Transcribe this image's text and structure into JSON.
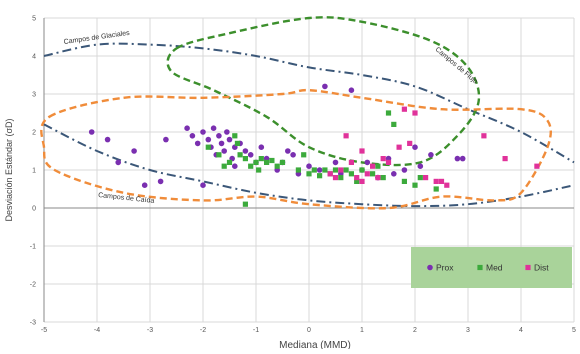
{
  "chart_data": {
    "type": "scatter",
    "title": "",
    "xlabel": "Mediana (MMD)",
    "ylabel": "Desviación Estándar (σD)",
    "xlim": [
      -5,
      5
    ],
    "ylim": [
      -3,
      5
    ],
    "x_ticks": [
      -5,
      -4,
      -3,
      -2,
      -1,
      0,
      1,
      2,
      3,
      4,
      5
    ],
    "y_ticks": [
      -3,
      -2,
      -1,
      0,
      1,
      2,
      3,
      4,
      5
    ],
    "x_tick_labels": [
      "-5",
      "-4",
      "-3",
      "-2",
      "-1",
      "0",
      "1",
      "2",
      "3",
      "4",
      "5"
    ],
    "y_tick_labels": [
      "-3",
      "-2",
      "-1",
      "0",
      "1",
      "2",
      "3",
      "4",
      "5"
    ],
    "grid": true,
    "legend_position": "bottom-right",
    "legend_background": "#a9d39a",
    "series": [
      {
        "name": "Prox",
        "color": "#7a2fb0",
        "marker": "circle",
        "points": [
          [
            -4.1,
            2.0
          ],
          [
            -3.8,
            1.8
          ],
          [
            -3.6,
            1.2
          ],
          [
            -3.3,
            1.5
          ],
          [
            -3.1,
            0.6
          ],
          [
            -2.7,
            1.8
          ],
          [
            -2.3,
            2.1
          ],
          [
            -2.2,
            1.9
          ],
          [
            -2.1,
            1.7
          ],
          [
            -2.0,
            2.0
          ],
          [
            -1.9,
            1.8
          ],
          [
            -1.85,
            1.6
          ],
          [
            -1.8,
            2.1
          ],
          [
            -1.75,
            1.4
          ],
          [
            -1.7,
            1.9
          ],
          [
            -1.65,
            1.7
          ],
          [
            -1.6,
            1.5
          ],
          [
            -1.55,
            2.0
          ],
          [
            -1.5,
            1.8
          ],
          [
            -1.45,
            1.3
          ],
          [
            -1.4,
            1.6
          ],
          [
            -1.3,
            1.7
          ],
          [
            -1.2,
            1.5
          ],
          [
            -1.1,
            1.4
          ],
          [
            -1.0,
            1.2
          ],
          [
            -0.9,
            1.6
          ],
          [
            -0.8,
            1.3
          ],
          [
            -0.6,
            1.0
          ],
          [
            -0.5,
            1.2
          ],
          [
            -0.4,
            1.5
          ],
          [
            -0.3,
            1.4
          ],
          [
            -0.2,
            0.9
          ],
          [
            0.0,
            1.1
          ],
          [
            0.2,
            1.0
          ],
          [
            0.3,
            3.2
          ],
          [
            0.5,
            1.2
          ],
          [
            0.6,
            0.9
          ],
          [
            0.8,
            3.1
          ],
          [
            1.0,
            1.0
          ],
          [
            1.1,
            1.2
          ],
          [
            1.3,
            0.8
          ],
          [
            1.5,
            1.3
          ],
          [
            1.6,
            0.9
          ],
          [
            1.8,
            1.0
          ],
          [
            2.0,
            1.6
          ],
          [
            2.1,
            1.1
          ],
          [
            2.3,
            1.4
          ],
          [
            2.8,
            1.3
          ],
          [
            2.9,
            1.3
          ],
          [
            -2.8,
            0.7
          ],
          [
            -2.0,
            0.6
          ],
          [
            -1.4,
            1.1
          ]
        ]
      },
      {
        "name": "Med",
        "color": "#3caa3c",
        "marker": "square",
        "points": [
          [
            -1.9,
            1.6
          ],
          [
            -1.7,
            1.4
          ],
          [
            -1.6,
            1.1
          ],
          [
            -1.5,
            1.2
          ],
          [
            -1.4,
            1.9
          ],
          [
            -1.35,
            1.7
          ],
          [
            -1.3,
            1.4
          ],
          [
            -1.2,
            1.3
          ],
          [
            -1.1,
            1.1
          ],
          [
            -1.0,
            1.2
          ],
          [
            -0.95,
            1.0
          ],
          [
            -0.9,
            1.3
          ],
          [
            -0.8,
            1.2
          ],
          [
            -0.7,
            1.25
          ],
          [
            -0.6,
            1.1
          ],
          [
            -0.5,
            1.2
          ],
          [
            -0.2,
            1.0
          ],
          [
            0.0,
            0.9
          ],
          [
            0.1,
            1.0
          ],
          [
            0.2,
            0.85
          ],
          [
            0.3,
            1.0
          ],
          [
            0.4,
            0.9
          ],
          [
            0.5,
            1.0
          ],
          [
            0.6,
            0.8
          ],
          [
            0.7,
            1.0
          ],
          [
            0.8,
            0.9
          ],
          [
            0.9,
            0.7
          ],
          [
            1.0,
            1.0
          ],
          [
            1.2,
            0.9
          ],
          [
            1.4,
            0.8
          ],
          [
            1.5,
            2.5
          ],
          [
            1.6,
            2.2
          ],
          [
            1.8,
            0.7
          ],
          [
            2.0,
            0.6
          ],
          [
            2.1,
            0.8
          ],
          [
            2.4,
            0.5
          ],
          [
            -1.2,
            0.1
          ],
          [
            -0.1,
            1.4
          ],
          [
            1.3,
            1.1
          ]
        ]
      },
      {
        "name": "Dist",
        "color": "#e0329a",
        "marker": "square",
        "points": [
          [
            0.5,
            0.8
          ],
          [
            0.6,
            1.0
          ],
          [
            0.7,
            1.9
          ],
          [
            0.8,
            1.2
          ],
          [
            0.9,
            0.8
          ],
          [
            1.0,
            1.5
          ],
          [
            1.1,
            0.9
          ],
          [
            1.2,
            1.1
          ],
          [
            1.3,
            0.8
          ],
          [
            1.5,
            1.2
          ],
          [
            1.7,
            1.6
          ],
          [
            1.8,
            2.6
          ],
          [
            1.9,
            1.7
          ],
          [
            2.0,
            2.5
          ],
          [
            2.2,
            0.8
          ],
          [
            2.4,
            0.7
          ],
          [
            2.5,
            0.7
          ],
          [
            2.6,
            0.6
          ],
          [
            3.3,
            1.9
          ],
          [
            3.7,
            1.3
          ],
          [
            4.3,
            1.1
          ],
          [
            0.4,
            0.9
          ],
          [
            1.4,
            1.3
          ],
          [
            1.0,
            0.7
          ]
        ]
      }
    ],
    "regions": [
      {
        "label": "Campos de Glaciales",
        "color": "#3b5778",
        "style": "dash-dot",
        "points": [
          [
            -5.0,
            4.0
          ],
          [
            -4.0,
            4.3
          ],
          [
            -3.0,
            4.3
          ],
          [
            -2.0,
            4.2
          ],
          [
            -1.0,
            4.0
          ],
          [
            0.0,
            3.7
          ],
          [
            1.0,
            3.5
          ],
          [
            2.0,
            3.2
          ],
          [
            3.0,
            2.6
          ],
          [
            4.0,
            2.0
          ],
          [
            5.0,
            1.2
          ]
        ]
      },
      {
        "label": "Campos de Caída",
        "color": "#3b5778",
        "style": "dash-dot",
        "points": [
          [
            -5.0,
            2.2
          ],
          [
            -4.0,
            1.5
          ],
          [
            -3.0,
            1.0
          ],
          [
            -2.0,
            0.7
          ],
          [
            -1.0,
            0.4
          ],
          [
            0.0,
            0.2
          ],
          [
            1.0,
            0.1
          ],
          [
            2.0,
            0.05
          ],
          [
            3.0,
            0.1
          ],
          [
            4.0,
            0.3
          ],
          [
            5.0,
            0.6
          ]
        ]
      },
      {
        "label": "Campos de Flujo",
        "color": "#3c8f2c",
        "style": "dashed",
        "closed": true,
        "points": [
          [
            -2.5,
            4.2
          ],
          [
            -1.5,
            4.6
          ],
          [
            0.0,
            5.0
          ],
          [
            1.0,
            4.9
          ],
          [
            2.3,
            4.4
          ],
          [
            3.0,
            3.7
          ],
          [
            3.2,
            2.8
          ],
          [
            2.8,
            1.9
          ],
          [
            2.1,
            1.2
          ],
          [
            1.0,
            1.2
          ],
          [
            0.0,
            1.6
          ],
          [
            -0.8,
            2.4
          ],
          [
            -1.8,
            3.1
          ],
          [
            -2.6,
            3.6
          ]
        ]
      },
      {
        "label": "",
        "color": "#f08c3a",
        "style": "dashed",
        "closed": true,
        "points": [
          [
            -4.9,
            2.4
          ],
          [
            -3.5,
            2.9
          ],
          [
            -2.0,
            2.9
          ],
          [
            -0.5,
            3.0
          ],
          [
            0.0,
            3.1
          ],
          [
            1.0,
            2.9
          ],
          [
            2.5,
            2.6
          ],
          [
            4.0,
            2.6
          ],
          [
            4.5,
            2.3
          ],
          [
            4.5,
            1.6
          ],
          [
            4.0,
            0.4
          ],
          [
            3.5,
            0.2
          ],
          [
            2.5,
            0.3
          ],
          [
            1.5,
            0.0
          ],
          [
            0.0,
            0.1
          ],
          [
            -1.0,
            0.3
          ],
          [
            -2.0,
            0.2
          ],
          [
            -3.5,
            0.4
          ],
          [
            -4.8,
            1.0
          ],
          [
            -5.0,
            1.6
          ]
        ]
      }
    ],
    "annotations": [
      "Campos de Glaciales",
      "Campos de Flujo",
      "Campos de Caída"
    ]
  }
}
